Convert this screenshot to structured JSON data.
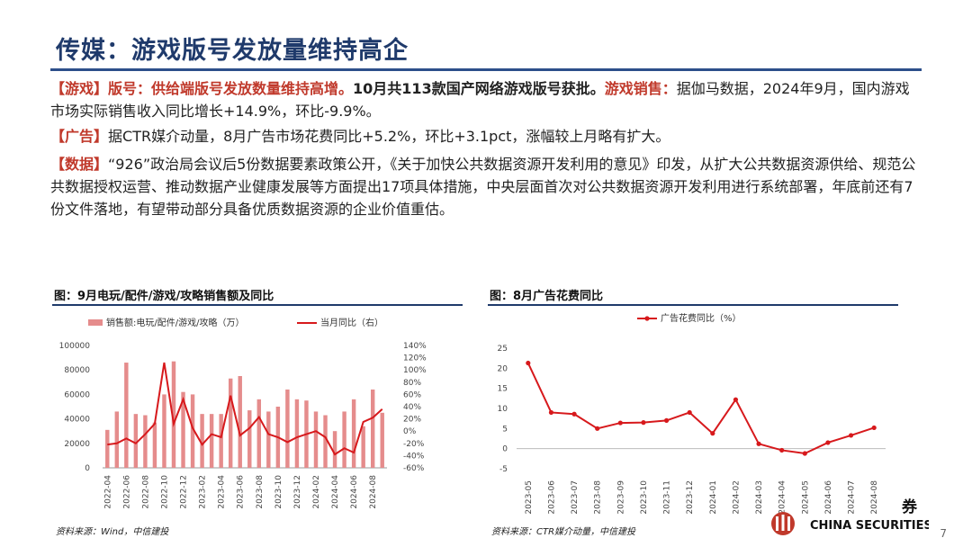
{
  "title": "传媒：游戏版号发放量维持高企",
  "paragraphs": [
    {
      "segments": [
        {
          "text": "【游戏】",
          "style": "tag"
        },
        {
          "text": "版号：供给端版号发放数量维持高增。",
          "style": "red"
        },
        {
          "text": "10月共113款国产网络游戏版号获批。",
          "style": "bold"
        },
        {
          "text": "游戏销售：",
          "style": "red"
        },
        {
          "text": "据伽马数据，2024年9月，国内游戏市场实际销售收入同比增长+14.9%，环比-9.9%。",
          "style": "plain"
        }
      ]
    },
    {
      "segments": [
        {
          "text": "【广告】",
          "style": "tag"
        },
        {
          "text": "据CTR媒介动量，8月广告市场花费同比+5.2%，环比+3.1pct，涨幅较上月略有扩大。",
          "style": "plain"
        }
      ]
    },
    {
      "segments": [
        {
          "text": "【数据】",
          "style": "tag"
        },
        {
          "text": "“926”政治局会议后5份数据要素政策公开，《关于加快公共数据资源开发利用的意见》印发，从扩大公共数据资源供给、规范公共数据授权运营、推动数据产业健康发展等方面提出17项具体措施，中央层面首次对公共数据资源开发利用进行系统部署，年底前还有7份文件落地，有望带动部分具备优质数据资源的企业价值重估。",
          "style": "plain"
        }
      ]
    }
  ],
  "chart_data": [
    {
      "type": "bar",
      "title": "图：9月电玩/配件/游戏/攻略销售额及同比",
      "categories": [
        "2022-04",
        "2022-05",
        "2022-06",
        "2022-07",
        "2022-08",
        "2022-09",
        "2022-10",
        "2022-11",
        "2022-12",
        "2023-01",
        "2023-02",
        "2023-03",
        "2023-04",
        "2023-05",
        "2023-06",
        "2023-07",
        "2023-08",
        "2023-09",
        "2023-10",
        "2023-11",
        "2023-12",
        "2024-01",
        "2024-02",
        "2024-03",
        "2024-04",
        "2024-05",
        "2024-06",
        "2024-07",
        "2024-08",
        "2024-09"
      ],
      "x_tick_labels": [
        "2022-04",
        "2022-06",
        "2022-08",
        "2022-10",
        "2022-12",
        "2023-02",
        "2023-04",
        "2023-06",
        "2023-08",
        "2023-10",
        "2023-12",
        "2024-02",
        "2024-04",
        "2024-06",
        "2024-08"
      ],
      "series": [
        {
          "name": "销售额:电玩/配件/游戏/攻略（万）",
          "type": "bar",
          "axis": "left",
          "color": "#e58c8c",
          "values": [
            31000,
            46000,
            86000,
            44000,
            43000,
            37000,
            60000,
            87000,
            62000,
            60000,
            44000,
            44000,
            44000,
            73000,
            75000,
            47000,
            56000,
            46000,
            50000,
            64000,
            56000,
            55000,
            46000,
            43000,
            30000,
            46000,
            56000,
            34000,
            64000,
            45000
          ]
        },
        {
          "name": "当月同比（右）",
          "type": "line",
          "axis": "right",
          "color": "#d7191c",
          "values": [
            -22,
            -20,
            -12,
            -20,
            -5,
            12,
            112,
            12,
            52,
            5,
            -22,
            -5,
            -10,
            58,
            -7,
            5,
            23,
            -5,
            -10,
            -18,
            -10,
            -5,
            0,
            -10,
            -38,
            -28,
            -35,
            15,
            22,
            36
          ]
        }
      ],
      "ylim_left": [
        0,
        100000
      ],
      "yticks_left": [
        "0",
        "20000",
        "40000",
        "60000",
        "80000",
        "100000"
      ],
      "ylim_right": [
        -60,
        140
      ],
      "yticks_right": [
        "-60%",
        "-40%",
        "-20%",
        "0%",
        "20%",
        "40%",
        "60%",
        "80%",
        "100%",
        "120%",
        "140%"
      ],
      "legend": "top",
      "source": "资料来源：Wind，中信建投"
    },
    {
      "type": "line",
      "title": "图：8月广告花费同比",
      "categories": [
        "2023-05",
        "2023-06",
        "2023-07",
        "2023-08",
        "2023-09",
        "2023-10",
        "2023-11",
        "2023-12",
        "2024-01",
        "2024-02",
        "2024-03",
        "2024-04",
        "2024-05",
        "2024-06",
        "2024-07",
        "2024-08"
      ],
      "series": [
        {
          "name": "广告花费同比（%）",
          "color": "#d7191c",
          "values": [
            21.3,
            9.0,
            8.6,
            5.0,
            6.4,
            6.5,
            7.0,
            9.0,
            3.8,
            12.2,
            1.2,
            -0.4,
            -1.2,
            1.5,
            3.3,
            5.2
          ]
        }
      ],
      "ylim": [
        -5,
        25
      ],
      "yticks": [
        "-5",
        "0",
        "5",
        "10",
        "15",
        "20",
        "25"
      ],
      "legend": "top",
      "source": "资料来源：CTR媒介动量，中信建投"
    }
  ],
  "logo": {
    "text": "CHINA SECURITIES",
    "cn_fragment": "券"
  },
  "page_number": "7"
}
